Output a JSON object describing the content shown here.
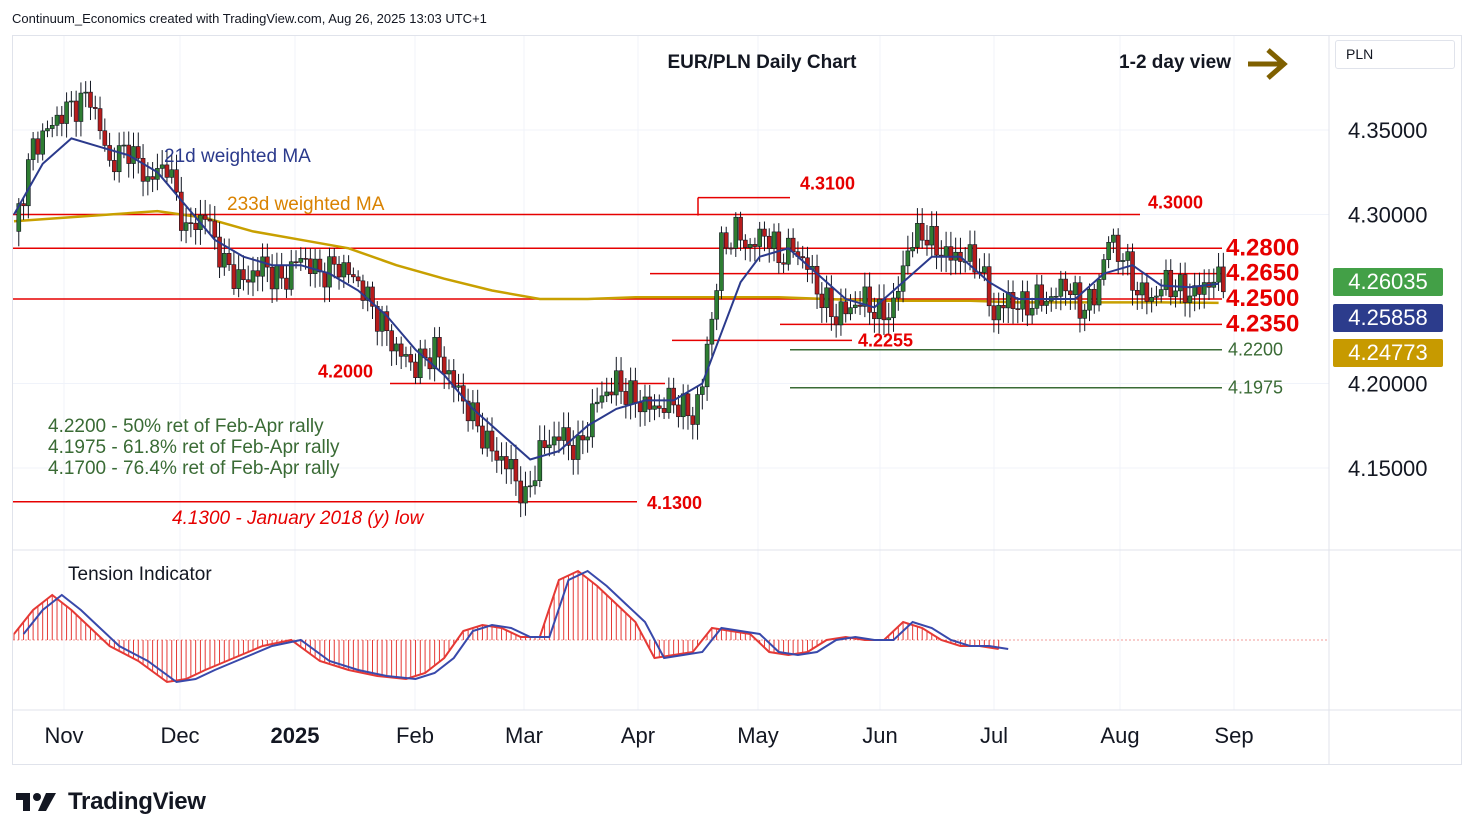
{
  "header": "Continuum_Economics created with TradingView.com, Aug 26, 2025 13:03 UTC+1",
  "title": "EUR/PLN Daily Chart",
  "view": {
    "label": "1-2 day view",
    "arrow_color": "#7f6000"
  },
  "currency": "PLN",
  "brand": {
    "name": "TradingView",
    "logo_icon": "tradingview-logo-icon"
  },
  "colors": {
    "up": "#26a69a",
    "down": "#ef5350",
    "up_fill": "#2e7d32",
    "down_fill": "#b71c1c",
    "ma21": "#2b3a8c",
    "ma233": "#c8a000",
    "level": "#e60000",
    "fib": "#3a6b35"
  },
  "price_tags": [
    {
      "value": "4.26035",
      "color": "#43a047",
      "ytop": 4.26035
    },
    {
      "value": "4.25858",
      "color": "#2c3c8c",
      "ytop": 4.25858
    },
    {
      "value": "4.24773",
      "color": "#c79a00",
      "ytop": 4.24773
    }
  ],
  "chart_data": {
    "type": "candlestick",
    "title": "EUR/PLN Daily Chart",
    "y_axis": {
      "ticks": [
        "4.35000",
        "4.30000",
        "4.20000",
        "4.15000"
      ],
      "tick_values": [
        4.35,
        4.3,
        4.2,
        4.15
      ],
      "range": [
        4.105,
        4.402
      ]
    },
    "x_axis": {
      "labels": [
        "Nov",
        "Dec",
        "2025",
        "Feb",
        "Mar",
        "Apr",
        "May",
        "Jun",
        "Jul",
        "Aug",
        "Sep"
      ]
    },
    "ma_labels": [
      {
        "text": "21d weighted MA",
        "color": "#2b3a8c"
      },
      {
        "text": "233d weighted MA",
        "color": "#d98200"
      }
    ],
    "levels": [
      {
        "value": 4.28,
        "label": "4.2800",
        "big": true
      },
      {
        "value": 4.265,
        "label": "4.2650",
        "big": true
      },
      {
        "value": 4.25,
        "label": "4.2500",
        "big": true
      },
      {
        "value": 4.235,
        "label": "4.2350",
        "big": true
      },
      {
        "value": 4.3,
        "label": "4.3000",
        "big": false
      },
      {
        "value": 4.31,
        "label": "4.3100",
        "big": false
      },
      {
        "value": 4.2255,
        "label": "4.2255",
        "big": false
      },
      {
        "value": 4.2,
        "label": "4.2000",
        "big": false
      },
      {
        "value": 4.13,
        "label": "4.1300",
        "big": false
      }
    ],
    "fib_levels": [
      {
        "value": 4.22,
        "label": "4.2200"
      },
      {
        "value": 4.1975,
        "label": "4.1975"
      }
    ],
    "notes": [
      "4.2200 - 50% ret of Feb-Apr rally",
      "4.1975 - 61.8% ret of Feb-Apr rally",
      "4.1700 - 76.4% ret of Feb-Apr rally"
    ],
    "low_note": "4.1300 - January 2018 (y) low",
    "tension_label": "Tension Indicator",
    "close_path": [
      [
        0,
        4.29
      ],
      [
        4,
        4.34
      ],
      [
        10,
        4.36
      ],
      [
        16,
        4.37
      ],
      [
        20,
        4.33
      ],
      [
        24,
        4.34
      ],
      [
        28,
        4.32
      ],
      [
        32,
        4.33
      ],
      [
        36,
        4.29
      ],
      [
        40,
        4.3
      ],
      [
        44,
        4.27
      ],
      [
        48,
        4.26
      ],
      [
        52,
        4.27
      ],
      [
        56,
        4.26
      ],
      [
        60,
        4.275
      ],
      [
        64,
        4.265
      ],
      [
        68,
        4.27
      ],
      [
        72,
        4.26
      ],
      [
        76,
        4.24
      ],
      [
        80,
        4.22
      ],
      [
        84,
        4.21
      ],
      [
        88,
        4.22
      ],
      [
        92,
        4.2
      ],
      [
        96,
        4.18
      ],
      [
        100,
        4.16
      ],
      [
        104,
        4.15
      ],
      [
        107,
        4.13
      ],
      [
        110,
        4.16
      ],
      [
        114,
        4.17
      ],
      [
        118,
        4.16
      ],
      [
        122,
        4.19
      ],
      [
        126,
        4.2
      ],
      [
        130,
        4.19
      ],
      [
        134,
        4.185
      ],
      [
        138,
        4.19
      ],
      [
        142,
        4.18
      ],
      [
        144,
        4.2
      ],
      [
        146,
        4.24
      ],
      [
        148,
        4.28
      ],
      [
        151,
        4.29
      ],
      [
        154,
        4.28
      ],
      [
        157,
        4.29
      ],
      [
        160,
        4.275
      ],
      [
        163,
        4.28
      ],
      [
        166,
        4.27
      ],
      [
        169,
        4.25
      ],
      [
        172,
        4.24
      ],
      [
        175,
        4.245
      ],
      [
        178,
        4.25
      ],
      [
        181,
        4.24
      ],
      [
        184,
        4.245
      ],
      [
        187,
        4.28
      ],
      [
        190,
        4.29
      ],
      [
        193,
        4.28
      ],
      [
        196,
        4.275
      ],
      [
        199,
        4.275
      ],
      [
        202,
        4.27
      ],
      [
        205,
        4.24
      ],
      [
        208,
        4.25
      ],
      [
        211,
        4.245
      ],
      [
        214,
        4.25
      ],
      [
        217,
        4.25
      ],
      [
        220,
        4.26
      ],
      [
        223,
        4.245
      ],
      [
        226,
        4.25
      ],
      [
        229,
        4.285
      ],
      [
        232,
        4.275
      ],
      [
        235,
        4.255
      ],
      [
        238,
        4.25
      ],
      [
        241,
        4.26
      ],
      [
        244,
        4.255
      ],
      [
        247,
        4.253
      ],
      [
        250,
        4.26
      ],
      [
        253,
        4.262
      ]
    ],
    "ma21_path": [
      [
        0,
        4.3
      ],
      [
        6,
        4.33
      ],
      [
        12,
        4.345
      ],
      [
        18,
        4.34
      ],
      [
        24,
        4.335
      ],
      [
        30,
        4.325
      ],
      [
        36,
        4.305
      ],
      [
        42,
        4.285
      ],
      [
        48,
        4.275
      ],
      [
        54,
        4.27
      ],
      [
        60,
        4.27
      ],
      [
        66,
        4.265
      ],
      [
        72,
        4.255
      ],
      [
        78,
        4.24
      ],
      [
        84,
        4.22
      ],
      [
        90,
        4.205
      ],
      [
        96,
        4.185
      ],
      [
        102,
        4.17
      ],
      [
        108,
        4.155
      ],
      [
        114,
        4.16
      ],
      [
        120,
        4.175
      ],
      [
        126,
        4.185
      ],
      [
        132,
        4.19
      ],
      [
        138,
        4.19
      ],
      [
        144,
        4.2
      ],
      [
        148,
        4.23
      ],
      [
        152,
        4.26
      ],
      [
        156,
        4.275
      ],
      [
        162,
        4.28
      ],
      [
        168,
        4.265
      ],
      [
        174,
        4.25
      ],
      [
        180,
        4.245
      ],
      [
        186,
        4.26
      ],
      [
        192,
        4.275
      ],
      [
        198,
        4.275
      ],
      [
        204,
        4.26
      ],
      [
        210,
        4.25
      ],
      [
        216,
        4.25
      ],
      [
        222,
        4.25
      ],
      [
        228,
        4.265
      ],
      [
        234,
        4.27
      ],
      [
        240,
        4.258
      ],
      [
        246,
        4.257
      ],
      [
        252,
        4.259
      ]
    ],
    "ma233_path": [
      [
        0,
        4.296
      ],
      [
        20,
        4.3
      ],
      [
        30,
        4.302
      ],
      [
        40,
        4.298
      ],
      [
        50,
        4.29
      ],
      [
        60,
        4.285
      ],
      [
        70,
        4.28
      ],
      [
        80,
        4.27
      ],
      [
        90,
        4.262
      ],
      [
        100,
        4.255
      ],
      [
        110,
        4.25
      ],
      [
        120,
        4.25
      ],
      [
        130,
        4.251
      ],
      [
        140,
        4.251
      ],
      [
        150,
        4.251
      ],
      [
        160,
        4.251
      ],
      [
        170,
        4.25
      ],
      [
        180,
        4.249
      ],
      [
        190,
        4.249
      ],
      [
        200,
        4.249
      ],
      [
        210,
        4.248
      ],
      [
        220,
        4.248
      ],
      [
        230,
        4.248
      ],
      [
        240,
        4.248
      ],
      [
        252,
        4.2477
      ]
    ],
    "tension_path": [
      [
        0,
        0.1
      ],
      [
        4,
        0.5
      ],
      [
        8,
        0.75
      ],
      [
        12,
        0.5
      ],
      [
        16,
        0.2
      ],
      [
        20,
        -0.1
      ],
      [
        26,
        -0.35
      ],
      [
        32,
        -0.7
      ],
      [
        36,
        -0.65
      ],
      [
        40,
        -0.5
      ],
      [
        46,
        -0.3
      ],
      [
        52,
        -0.1
      ],
      [
        58,
        0.0
      ],
      [
        64,
        -0.35
      ],
      [
        70,
        -0.5
      ],
      [
        76,
        -0.6
      ],
      [
        82,
        -0.65
      ],
      [
        86,
        -0.55
      ],
      [
        90,
        -0.3
      ],
      [
        94,
        0.15
      ],
      [
        98,
        0.25
      ],
      [
        102,
        0.2
      ],
      [
        106,
        0.05
      ],
      [
        110,
        0.05
      ],
      [
        114,
        1.0
      ],
      [
        118,
        1.15
      ],
      [
        122,
        0.9
      ],
      [
        126,
        0.6
      ],
      [
        130,
        0.3
      ],
      [
        134,
        -0.3
      ],
      [
        138,
        -0.25
      ],
      [
        142,
        -0.2
      ],
      [
        146,
        0.2
      ],
      [
        150,
        0.15
      ],
      [
        154,
        0.1
      ],
      [
        158,
        -0.2
      ],
      [
        162,
        -0.25
      ],
      [
        166,
        -0.2
      ],
      [
        170,
        0.0
      ],
      [
        174,
        0.05
      ],
      [
        178,
        0.0
      ],
      [
        182,
        0.0
      ],
      [
        186,
        0.3
      ],
      [
        190,
        0.2
      ],
      [
        194,
        0.0
      ],
      [
        198,
        -0.1
      ],
      [
        202,
        -0.1
      ],
      [
        206,
        -0.15
      ]
    ]
  }
}
